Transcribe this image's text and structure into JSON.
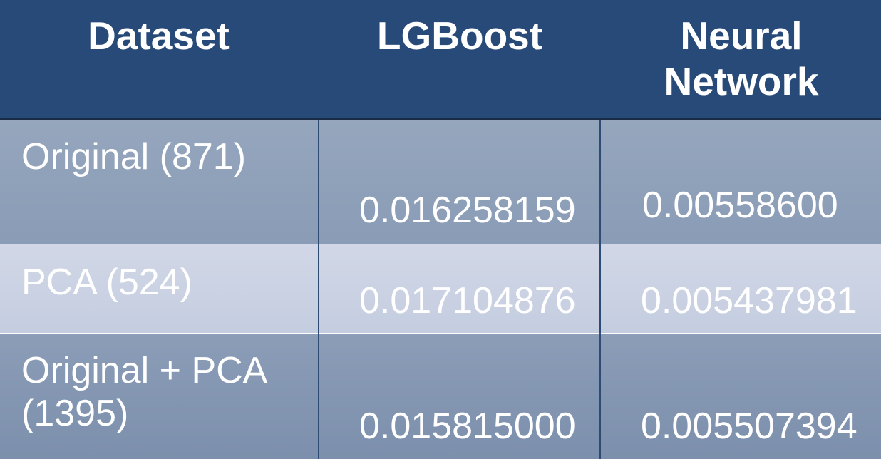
{
  "table": {
    "headers": {
      "dataset": "Dataset",
      "lgboost": "LGBoost",
      "nn_line1": "Neural",
      "nn_line2": "Network"
    },
    "rows": [
      {
        "dataset_line1": "Original (871)",
        "dataset_line2": "",
        "lgboost": "0.016258159",
        "nn": "0.00558600"
      },
      {
        "dataset_line1": "PCA (524)",
        "dataset_line2": "",
        "lgboost": "0.017104876",
        "nn": "0.005437981"
      },
      {
        "dataset_line1": "Original + PCA",
        "dataset_line2": "(1395)",
        "lgboost": "0.015815000",
        "nn": "0.005507394"
      }
    ]
  },
  "colors": {
    "header_bg": "#284a78",
    "row_dark": "#8a9cb6",
    "row_light": "#c9d1e3",
    "text": "#ffffff"
  }
}
